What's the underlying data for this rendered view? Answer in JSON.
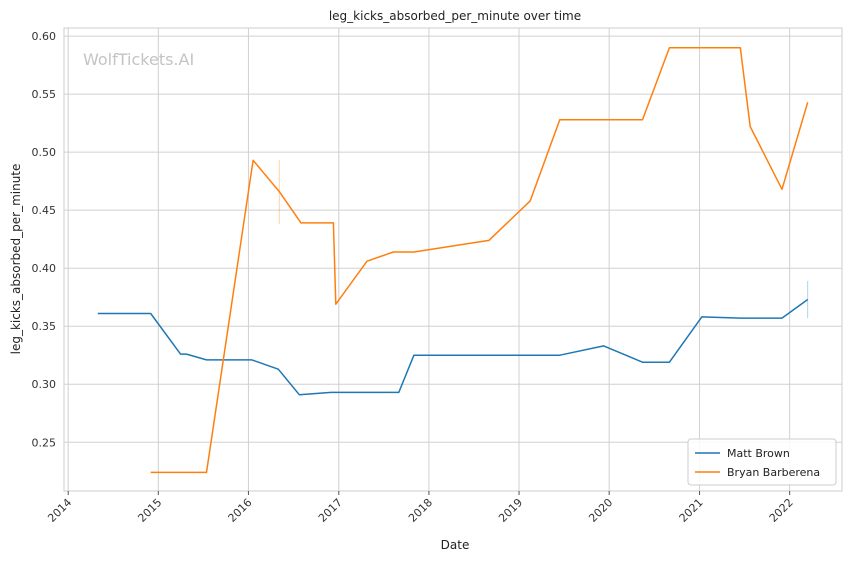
{
  "chart_data": {
    "type": "line",
    "title": "leg_kicks_absorbed_per_minute over time",
    "xlabel": "Date",
    "ylabel": "leg_kicks_absorbed_per_minute",
    "watermark": "WolfTickets.AI",
    "xlim": [
      "2013-12-15",
      "2022-08-01"
    ],
    "ylim": [
      0.208,
      0.607
    ],
    "x_ticks": [
      "2014",
      "2015",
      "2016",
      "2017",
      "2018",
      "2019",
      "2020",
      "2021",
      "2022"
    ],
    "y_ticks": [
      "0.25",
      "0.30",
      "0.35",
      "0.40",
      "0.45",
      "0.50",
      "0.55",
      "0.60"
    ],
    "grid": true,
    "legend_position": "lower-right",
    "series": [
      {
        "name": "Matt Brown",
        "color": "#1f77b4",
        "points": [
          [
            "2014-05-01",
            0.361
          ],
          [
            "2014-12-01",
            0.361
          ],
          [
            "2015-04-01",
            0.326
          ],
          [
            "2015-04-25",
            0.326
          ],
          [
            "2015-07-15",
            0.321
          ],
          [
            "2016-01-15",
            0.321
          ],
          [
            "2016-05-01",
            0.313
          ],
          [
            "2016-07-25",
            0.291
          ],
          [
            "2016-12-01",
            0.293
          ],
          [
            "2017-09-01",
            0.293
          ],
          [
            "2017-11-01",
            0.325
          ],
          [
            "2018-12-15",
            0.325
          ],
          [
            "2019-06-15",
            0.325
          ],
          [
            "2019-12-10",
            0.333
          ],
          [
            "2020-05-15",
            0.319
          ],
          [
            "2020-09-01",
            0.319
          ],
          [
            "2021-01-10",
            0.358
          ],
          [
            "2021-06-15",
            0.357
          ],
          [
            "2021-12-01",
            0.357
          ],
          [
            "2022-03-15",
            0.373
          ]
        ],
        "error_bars": [
          {
            "x": "2022-03-15",
            "low": 0.357,
            "high": 0.389
          }
        ]
      },
      {
        "name": "Bryan Barberena",
        "color": "#ff7f0e",
        "points": [
          [
            "2014-12-01",
            0.224
          ],
          [
            "2015-07-15",
            0.224
          ],
          [
            "2016-01-20",
            0.493
          ],
          [
            "2016-05-05",
            0.466
          ],
          [
            "2016-08-01",
            0.439
          ],
          [
            "2016-12-10",
            0.439
          ],
          [
            "2016-12-20",
            0.369
          ],
          [
            "2017-04-25",
            0.406
          ],
          [
            "2017-08-10",
            0.414
          ],
          [
            "2017-11-01",
            0.414
          ],
          [
            "2018-09-01",
            0.424
          ],
          [
            "2019-02-15",
            0.458
          ],
          [
            "2019-06-15",
            0.528
          ],
          [
            "2020-05-15",
            0.528
          ],
          [
            "2020-09-01",
            0.59
          ],
          [
            "2021-06-15",
            0.59
          ],
          [
            "2021-07-25",
            0.522
          ],
          [
            "2021-12-01",
            0.468
          ],
          [
            "2022-03-15",
            0.543
          ]
        ],
        "error_bars": [
          {
            "x": "2016-05-05",
            "low": 0.438,
            "high": 0.493
          }
        ]
      }
    ]
  }
}
